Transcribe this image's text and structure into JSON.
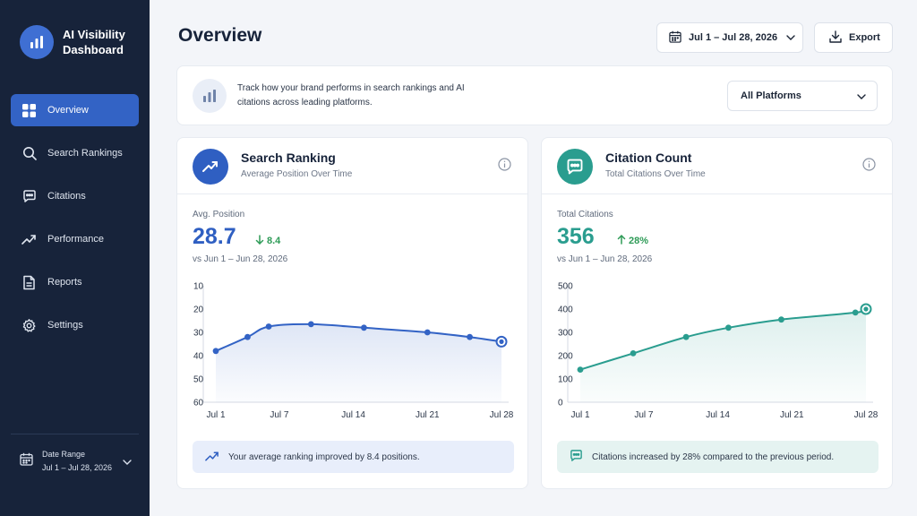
{
  "app": {
    "title": "AI Visibility Dashboard"
  },
  "sidebar": {
    "items": [
      {
        "label": "Overview",
        "icon": "grid-icon",
        "active": true
      },
      {
        "label": "Search Rankings",
        "icon": "search-icon"
      },
      {
        "label": "Citations",
        "icon": "chat-icon"
      },
      {
        "label": "Performance",
        "icon": "trend-icon"
      },
      {
        "label": "Reports",
        "icon": "document-icon"
      },
      {
        "label": "Settings",
        "icon": "gear-icon"
      }
    ],
    "date_range": {
      "label": "Date Range",
      "value": "Jul 1 – Jul 28, 2026"
    }
  },
  "header": {
    "title": "Overview",
    "date_button": "Jul 1 – Jul 28, 2026",
    "export_label": "Export"
  },
  "info": {
    "text": "Track how your brand performs in search rankings and AI citations across leading platforms.",
    "platform_select": "All Platforms"
  },
  "colors": {
    "sidebar_bg": "#17233a",
    "accent_blue": "#3363c5",
    "accent_teal": "#2a9d8f",
    "positive_green": "#2e9b57"
  },
  "cards": {
    "ranking": {
      "title": "Search Ranking",
      "subtitle": "Average Position Over Time",
      "metric_label": "Avg. Position",
      "metric_value": "28.7",
      "metric_change": "8.4",
      "compare": "vs Jun 1 – Jun 28, 2026",
      "callout": "Your average ranking improved by 8.4 positions."
    },
    "citations": {
      "title": "Citation Count",
      "subtitle": "Total Citations Over Time",
      "metric_label": "Total Citations",
      "metric_value": "356",
      "metric_change": "28%",
      "compare": "vs Jun 1 – Jun 28, 2026",
      "callout": "Citations increased by 28% compared to the previous period."
    }
  },
  "chart_data": [
    {
      "type": "area",
      "title": "Search Ranking",
      "x_ticks": [
        "Jul 1",
        "Jul 7",
        "Jul 14",
        "Jul 21",
        "Jul 28"
      ],
      "y_ticks": [
        10,
        20,
        30,
        40,
        50,
        60
      ],
      "ylim": [
        10,
        60
      ],
      "y_inverted": true,
      "x": [
        1,
        4,
        6,
        10,
        15,
        21,
        25,
        28
      ],
      "y": [
        38,
        32,
        27.5,
        26.5,
        28,
        30,
        32,
        34
      ],
      "color": "#3363c5",
      "grid": false
    },
    {
      "type": "area",
      "title": "Citation Count",
      "x_ticks": [
        "Jul 1",
        "Jul 7",
        "Jul 14",
        "Jul 21",
        "Jul 28"
      ],
      "y_ticks": [
        0,
        100,
        200,
        300,
        400,
        500
      ],
      "ylim": [
        0,
        500
      ],
      "x": [
        1,
        6,
        11,
        15,
        20,
        27,
        28
      ],
      "y": [
        140,
        210,
        280,
        320,
        355,
        385,
        400
      ],
      "color": "#2a9d8f",
      "grid": false
    }
  ]
}
